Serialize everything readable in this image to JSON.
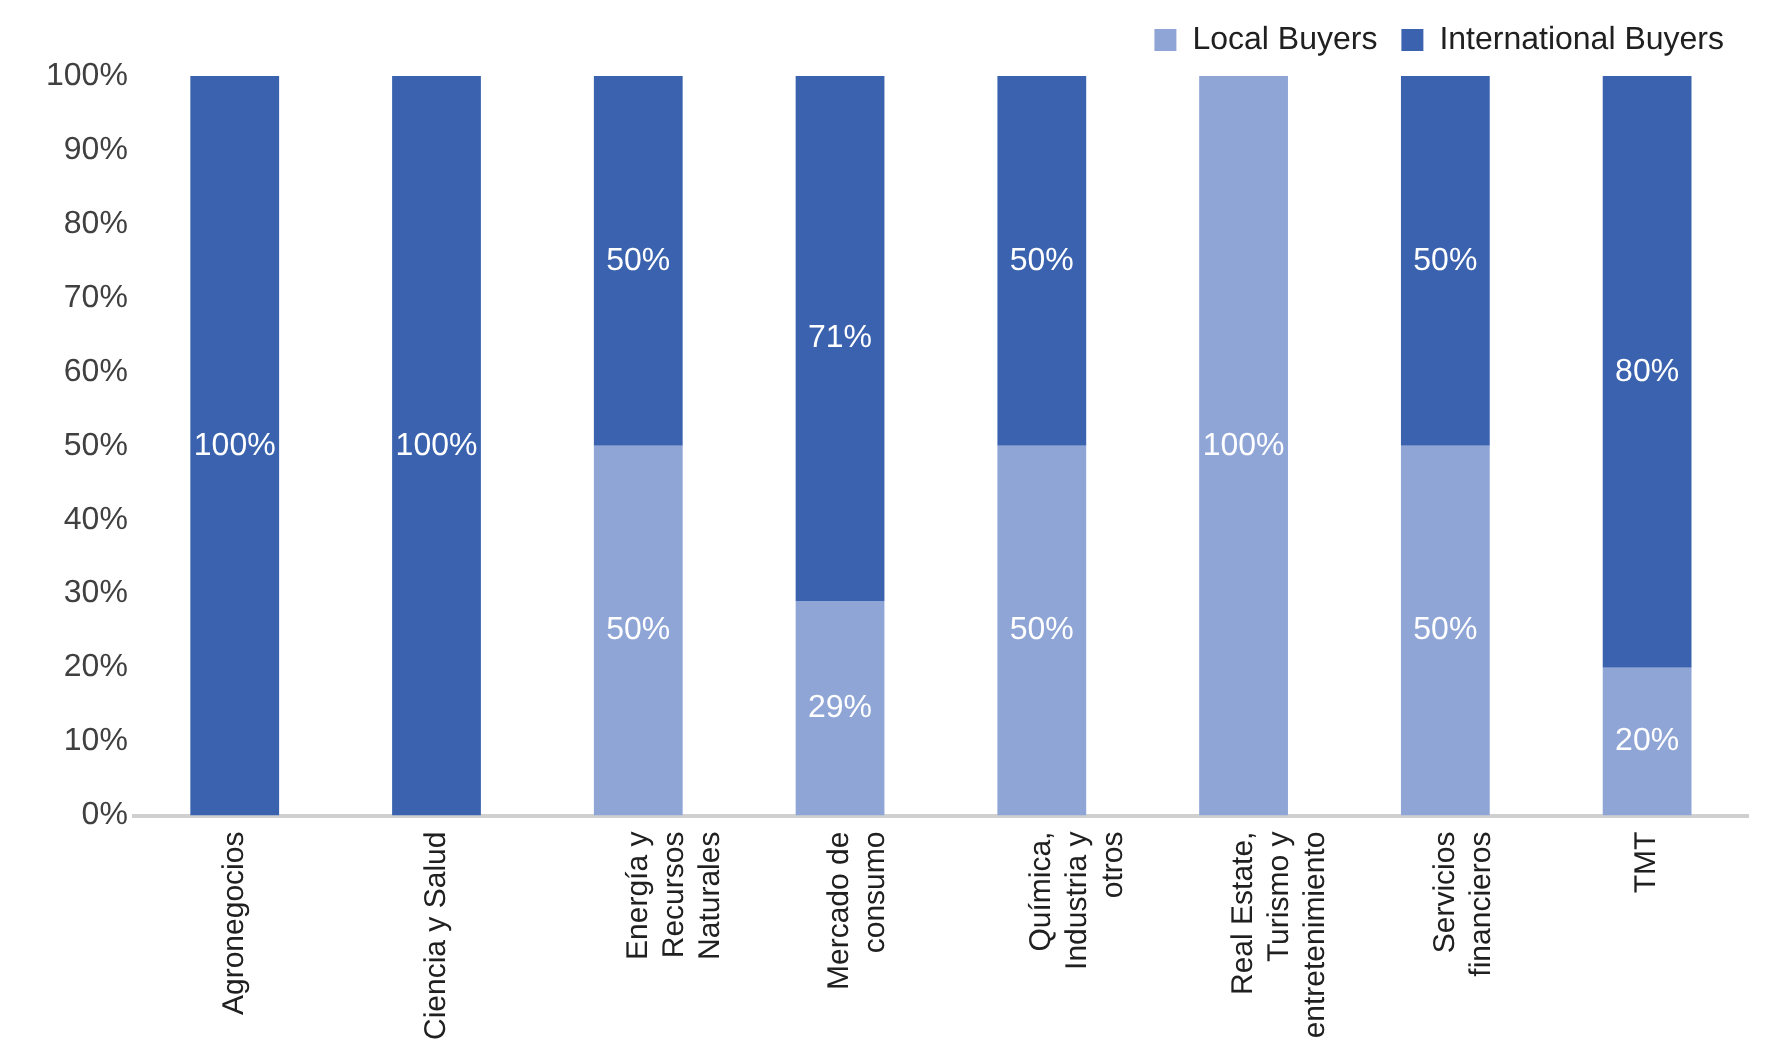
{
  "chart_data": {
    "type": "bar",
    "stacked": true,
    "legend": "top",
    "data_labels": false,
    "categories": [
      "Agronegocios",
      "Ciencia y Salud",
      "Energía y\nRecursos\nNaturales",
      "Mercado de\nconsumo",
      "Química,\nIndustria y\notros",
      "Real Estate,\nTurismo y\nentretenimiento",
      "Servicios\nfinancieros",
      "TMT"
    ],
    "series": [
      {
        "name": "Local Buyers",
        "color": "#8fa5d6",
        "values": [
          0,
          0,
          50,
          29,
          50,
          100,
          50,
          20
        ],
        "value_labels": [
          null,
          null,
          "50%",
          "29%",
          "50%",
          "100%",
          "50%",
          "20%"
        ]
      },
      {
        "name": "International Buyers",
        "color": "#3a62ae",
        "values": [
          100,
          100,
          50,
          71,
          50,
          0,
          50,
          80
        ],
        "value_labels": [
          "100%",
          "100%",
          "50%",
          "71%",
          "50%",
          null,
          "50%",
          "80%"
        ]
      }
    ],
    "ylim": [
      0,
      100
    ],
    "yticks": [
      {
        "value": 0,
        "label": "0%"
      },
      {
        "value": 10,
        "label": "10%"
      },
      {
        "value": 20,
        "label": "20%"
      },
      {
        "value": 30,
        "label": "30%"
      },
      {
        "value": 40,
        "label": "40%"
      },
      {
        "value": 50,
        "label": "50%"
      },
      {
        "value": 60,
        "label": "60%"
      },
      {
        "value": 70,
        "label": "70%"
      },
      {
        "value": 80,
        "label": "80%"
      },
      {
        "value": 90,
        "label": "90%"
      },
      {
        "value": 100,
        "label": "100%"
      }
    ],
    "grid": false
  }
}
